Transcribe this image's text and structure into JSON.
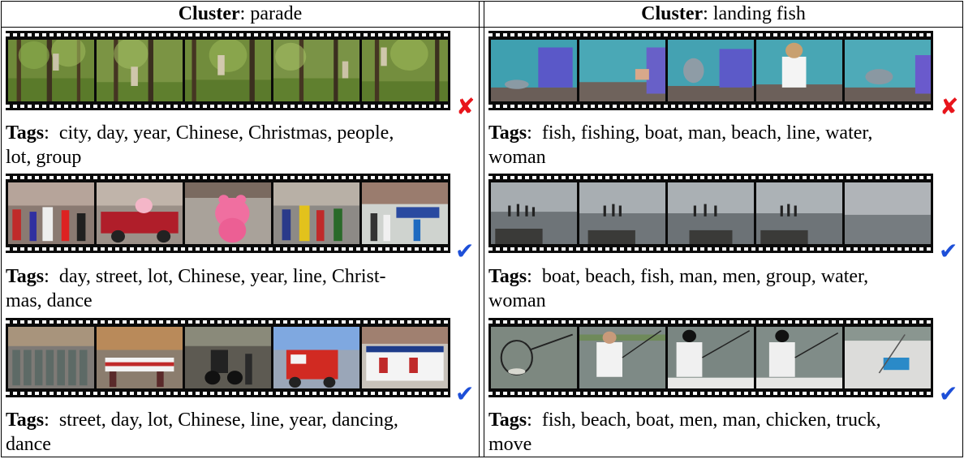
{
  "columns": [
    {
      "cluster_label": "Cluster",
      "cluster_name": "parade",
      "rows": [
        {
          "status": "incorrect",
          "mark_glyph": "✘",
          "scene": "forest",
          "tags_label": "Tags",
          "tags_line1": "city, day, year, Chinese, Christmas, people,",
          "tags_line2": "lot, group"
        },
        {
          "status": "correct",
          "mark_glyph": "✔",
          "scene": "parade-street",
          "tags_label": "Tags",
          "tags_line1": "day, street, lot, Chinese, year, line, Christ-",
          "tags_line2": "mas, dance"
        },
        {
          "status": "correct",
          "mark_glyph": "✔",
          "scene": "parade-march",
          "tags_label": "Tags",
          "tags_line1": "street, day, lot, Chinese, line, year, dancing,",
          "tags_line2": "dance"
        }
      ]
    },
    {
      "cluster_label": "Cluster",
      "cluster_name": "landing fish",
      "rows": [
        {
          "status": "incorrect",
          "mark_glyph": "✘",
          "scene": "dolphin-pool",
          "tags_label": "Tags",
          "tags_line1": "fish, fishing, boat, man, beach, line, water,",
          "tags_line2": "woman"
        },
        {
          "status": "correct",
          "mark_glyph": "✔",
          "scene": "sea-pier",
          "tags_label": "Tags",
          "tags_line1": "boat, beach, fish, man, men, group, water,",
          "tags_line2": "woman"
        },
        {
          "status": "correct",
          "mark_glyph": "✔",
          "scene": "boat-fishing",
          "tags_label": "Tags",
          "tags_line1": "fish, beach, boat, men, man, chicken, truck,",
          "tags_line2": "move"
        }
      ]
    }
  ],
  "colors": {
    "incorrect_mark": "#e8141b",
    "correct_mark": "#1d4fd8",
    "film": "#0a0a0a"
  }
}
